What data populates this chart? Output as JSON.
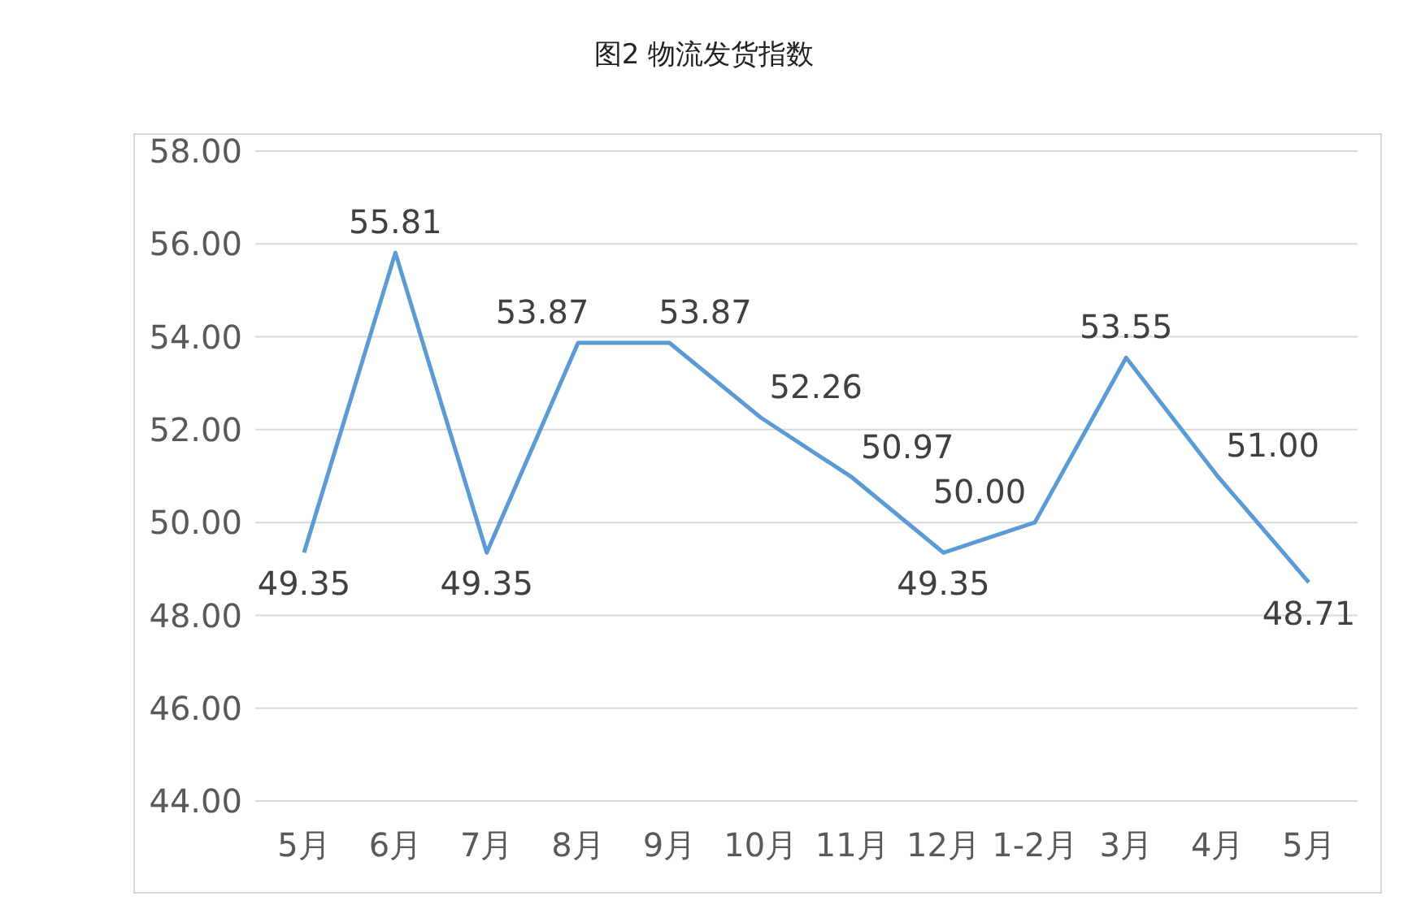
{
  "chart_data": {
    "type": "line",
    "title": "图2 物流发货指数",
    "categories": [
      "5月",
      "6月",
      "7月",
      "8月",
      "9月",
      "10月",
      "11月",
      "12月",
      "1-2月",
      "3月",
      "4月",
      "5月"
    ],
    "series": [
      {
        "color": "#5b9bd5",
        "values": [
          49.35,
          55.81,
          49.35,
          53.87,
          53.87,
          52.26,
          50.97,
          49.35,
          50.0,
          53.55,
          51.0,
          48.71
        ],
        "value_labels": [
          "49.35",
          "55.81",
          "49.35",
          "53.87",
          "53.87",
          "52.26",
          "50.97",
          "49.35",
          "50.00",
          "53.55",
          "51.00",
          "48.71"
        ]
      }
    ],
    "ylim": [
      44,
      58
    ],
    "yticks": [
      {
        "value": 44,
        "label": "44.00"
      },
      {
        "value": 46,
        "label": "46.00"
      },
      {
        "value": 48,
        "label": "48.00"
      },
      {
        "value": 50,
        "label": "50.00"
      },
      {
        "value": 52,
        "label": "52.00"
      },
      {
        "value": 54,
        "label": "54.00"
      },
      {
        "value": 56,
        "label": "56.00"
      },
      {
        "value": 58,
        "label": "58.00"
      }
    ],
    "grid": "y",
    "legend": false,
    "marker": "none",
    "line_style": "solid"
  }
}
